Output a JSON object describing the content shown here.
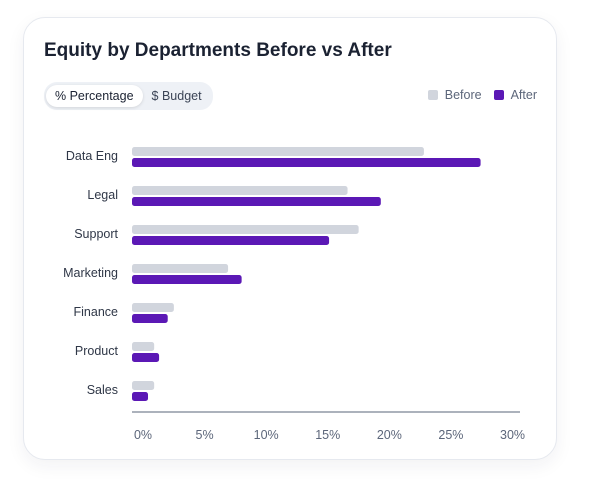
{
  "chart_data": {
    "type": "bar",
    "orientation": "horizontal",
    "title": "Equity by Departments Before vs After",
    "categories": [
      "Data Eng",
      "Legal",
      "Support",
      "Marketing",
      "Finance",
      "Product",
      "Sales"
    ],
    "series": [
      {
        "name": "Before",
        "color": "#d1d5dd",
        "values": [
          23.7,
          17.5,
          18.4,
          7.8,
          3.4,
          1.8,
          1.8
        ]
      },
      {
        "name": "After",
        "color": "#5b18b5",
        "values": [
          28.3,
          20.2,
          16.0,
          8.9,
          2.9,
          2.2,
          1.3
        ]
      }
    ],
    "x_ticks": [
      "0%",
      "5%",
      "10%",
      "15%",
      "20%",
      "25%",
      "30%"
    ],
    "xlim": [
      0,
      31.5
    ],
    "legend_position": "top-right",
    "grid": false
  },
  "toggle": {
    "percentage_label": "% Percentage",
    "budget_label": "$ Budget",
    "active": "percentage"
  }
}
